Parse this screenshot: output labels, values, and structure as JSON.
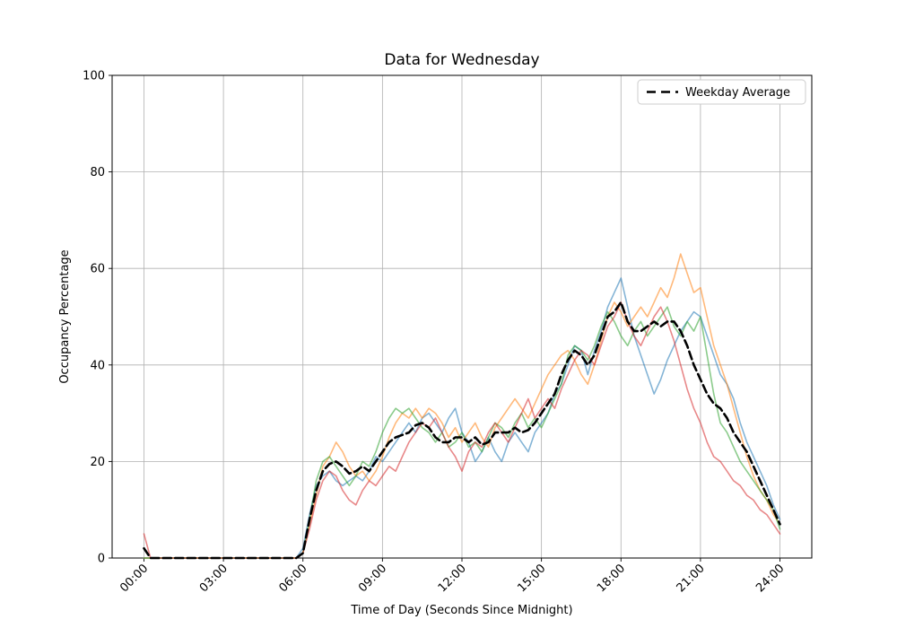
{
  "chart_data": {
    "type": "line",
    "title": "Data for Wednesday",
    "xlabel": "Time of Day (Seconds Since Midnight)",
    "ylabel": "Occupancy Percentage",
    "grid": true,
    "legend": {
      "position": "upper right",
      "entries": [
        "Weekday Average"
      ]
    },
    "xlim": [
      -1.2,
      25.2
    ],
    "ylim": [
      0,
      100
    ],
    "x_ticks_hours": [
      0,
      3,
      6,
      9,
      12,
      15,
      18,
      21,
      24
    ],
    "x_tick_labels": [
      "00:00",
      "03:00",
      "06:00",
      "09:00",
      "12:00",
      "15:00",
      "18:00",
      "21:00",
      "24:00"
    ],
    "y_ticks": [
      0,
      20,
      40,
      60,
      80,
      100
    ],
    "y_tick_labels": [
      "0",
      "20",
      "40",
      "60",
      "80",
      "100"
    ],
    "x_start": 0,
    "x_step": 0.25,
    "x_unit": "hours",
    "series": [
      {
        "name": "series-1",
        "color": "#1f77b4",
        "alpha": 0.55,
        "dashed": false,
        "in_legend": false,
        "values": [
          0,
          0,
          0,
          0,
          0,
          0,
          0,
          0,
          0,
          0,
          0,
          0,
          0,
          0,
          0,
          0,
          0,
          0,
          0,
          0,
          0,
          0,
          0,
          0,
          2,
          9,
          15,
          17,
          18,
          16,
          15,
          16,
          17,
          16,
          18,
          21,
          20,
          22,
          24,
          26,
          28,
          26,
          29,
          30,
          28,
          26,
          29,
          31,
          26,
          24,
          20,
          22,
          25,
          22,
          20,
          24,
          26,
          24,
          22,
          26,
          28,
          30,
          34,
          36,
          40,
          44,
          43,
          38,
          43,
          47,
          52,
          55,
          58,
          52,
          46,
          42,
          38,
          34,
          37,
          41,
          44,
          47,
          49,
          51,
          50,
          46,
          42,
          38,
          36,
          33,
          28,
          24,
          21,
          18,
          15,
          11,
          8
        ]
      },
      {
        "name": "series-2",
        "color": "#ff7f0e",
        "alpha": 0.55,
        "dashed": false,
        "in_legend": false,
        "values": [
          0,
          0,
          0,
          0,
          0,
          0,
          0,
          0,
          0,
          0,
          0,
          0,
          0,
          0,
          0,
          0,
          0,
          0,
          0,
          0,
          0,
          0,
          0,
          0,
          1,
          7,
          13,
          19,
          21,
          24,
          22,
          19,
          17,
          18,
          16,
          18,
          21,
          25,
          28,
          30,
          29,
          31,
          29,
          31,
          30,
          28,
          25,
          27,
          24,
          26,
          28,
          25,
          23,
          27,
          29,
          31,
          33,
          31,
          29,
          32,
          35,
          38,
          40,
          42,
          43,
          41,
          38,
          36,
          40,
          45,
          50,
          53,
          51,
          48,
          50,
          52,
          50,
          53,
          56,
          54,
          58,
          63,
          59,
          55,
          56,
          50,
          44,
          40,
          36,
          31,
          26,
          21,
          17,
          14,
          12,
          9,
          7
        ]
      },
      {
        "name": "series-3",
        "color": "#2ca02c",
        "alpha": 0.55,
        "dashed": false,
        "in_legend": false,
        "values": [
          0,
          0,
          0,
          0,
          0,
          0,
          0,
          0,
          0,
          0,
          0,
          0,
          0,
          0,
          0,
          0,
          0,
          0,
          0,
          0,
          0,
          0,
          0,
          0,
          1,
          8,
          16,
          20,
          21,
          19,
          17,
          15,
          17,
          20,
          19,
          22,
          26,
          29,
          31,
          30,
          31,
          29,
          27,
          26,
          24,
          26,
          23,
          24,
          26,
          23,
          24,
          22,
          25,
          28,
          27,
          25,
          28,
          30,
          27,
          29,
          27,
          30,
          33,
          36,
          42,
          44,
          43,
          41,
          44,
          48,
          51,
          49,
          46,
          44,
          47,
          49,
          46,
          48,
          50,
          52,
          48,
          46,
          49,
          47,
          50,
          42,
          34,
          28,
          26,
          23,
          20,
          18,
          16,
          14,
          12,
          10,
          6
        ]
      },
      {
        "name": "series-4",
        "color": "#d62728",
        "alpha": 0.55,
        "dashed": false,
        "in_legend": false,
        "values": [
          5,
          0,
          0,
          0,
          0,
          0,
          0,
          0,
          0,
          0,
          0,
          0,
          0,
          0,
          0,
          0,
          0,
          0,
          0,
          0,
          0,
          0,
          0,
          0,
          1,
          6,
          12,
          16,
          18,
          17,
          14,
          12,
          11,
          14,
          16,
          15,
          17,
          19,
          18,
          21,
          24,
          26,
          28,
          27,
          29,
          26,
          23,
          21,
          18,
          22,
          24,
          23,
          26,
          28,
          26,
          24,
          27,
          30,
          33,
          29,
          31,
          33,
          31,
          35,
          38,
          41,
          43,
          42,
          40,
          44,
          48,
          50,
          53,
          49,
          46,
          44,
          47,
          50,
          52,
          49,
          45,
          40,
          35,
          31,
          28,
          24,
          21,
          20,
          18,
          16,
          15,
          13,
          12,
          10,
          9,
          7,
          5
        ]
      },
      {
        "name": "Weekday Average",
        "color": "#000000",
        "alpha": 1,
        "dashed": true,
        "in_legend": true,
        "values": [
          2,
          0,
          0,
          0,
          0,
          0,
          0,
          0,
          0,
          0,
          0,
          0,
          0,
          0,
          0,
          0,
          0,
          0,
          0,
          0,
          0,
          0,
          0,
          0,
          1,
          8,
          14,
          18,
          19.5,
          20,
          19,
          17.5,
          18,
          19,
          18,
          20,
          22,
          24,
          25,
          25.5,
          26,
          27.5,
          28,
          27,
          25,
          24,
          24,
          25,
          25,
          24,
          25,
          23.5,
          24,
          26,
          26,
          26,
          27,
          26,
          26.5,
          28,
          30,
          32,
          34,
          38,
          41,
          43,
          42,
          40,
          42,
          46,
          50,
          51,
          53,
          49,
          47,
          47,
          48,
          49,
          48,
          49,
          49,
          47,
          44,
          40,
          37,
          34,
          32,
          31,
          29,
          26,
          24,
          22,
          19,
          16,
          13,
          10,
          7
        ]
      }
    ]
  }
}
